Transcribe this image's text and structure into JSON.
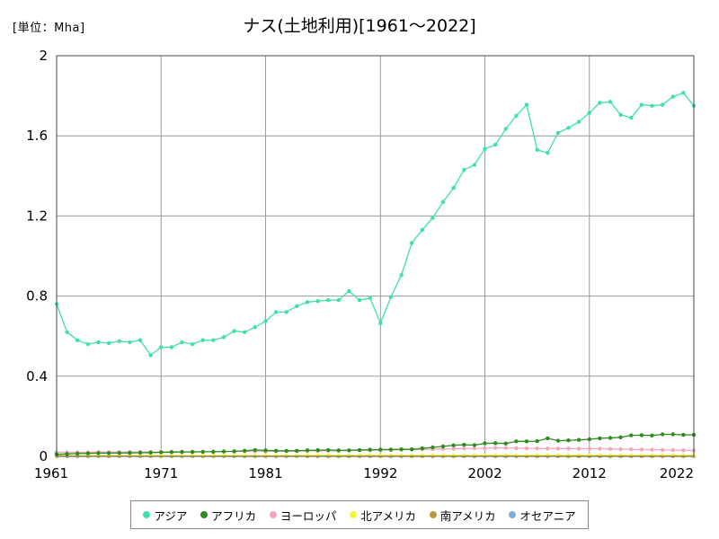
{
  "header": {
    "unit": "[単位：Mha]",
    "title": "ナス(土地利用)[1961～2022]"
  },
  "chart_data": {
    "type": "line",
    "title": "ナス(土地利用)[1961～2022]",
    "unit": "[単位：Mha]",
    "xlim": [
      1961,
      2022
    ],
    "ylim": [
      0,
      2
    ],
    "x_ticks": [
      1961,
      1971,
      1981,
      1992,
      2002,
      2012,
      2022
    ],
    "y_ticks": [
      0,
      0.4,
      0.8,
      1.2,
      1.6,
      2
    ],
    "y_tick_labels": [
      "0",
      "0.4",
      "0.8",
      "1.2",
      "1.6",
      "2"
    ],
    "grid": true,
    "legend_position": "bottom",
    "x": [
      1961,
      1962,
      1963,
      1964,
      1965,
      1966,
      1967,
      1968,
      1969,
      1970,
      1971,
      1972,
      1973,
      1974,
      1975,
      1976,
      1977,
      1978,
      1979,
      1980,
      1981,
      1982,
      1983,
      1984,
      1985,
      1986,
      1987,
      1988,
      1989,
      1990,
      1991,
      1992,
      1993,
      1994,
      1995,
      1996,
      1997,
      1998,
      1999,
      2000,
      2001,
      2002,
      2003,
      2004,
      2005,
      2006,
      2007,
      2008,
      2009,
      2010,
      2011,
      2012,
      2013,
      2014,
      2015,
      2016,
      2017,
      2018,
      2019,
      2020,
      2021,
      2022
    ],
    "series": [
      {
        "name": "アジア",
        "color": "#3ee0b0",
        "values": [
          0.76,
          0.62,
          0.58,
          0.56,
          0.57,
          0.565,
          0.575,
          0.57,
          0.58,
          0.505,
          0.545,
          0.545,
          0.57,
          0.56,
          0.58,
          0.58,
          0.595,
          0.625,
          0.62,
          0.645,
          0.675,
          0.72,
          0.72,
          0.75,
          0.77,
          0.775,
          0.78,
          0.78,
          0.825,
          0.78,
          0.79,
          0.665,
          0.795,
          0.905,
          1.065,
          1.13,
          1.19,
          1.27,
          1.34,
          1.43,
          1.455,
          1.535,
          1.555,
          1.635,
          1.7,
          1.755,
          1.53,
          1.515,
          1.615,
          1.64,
          1.67,
          1.715,
          1.765,
          1.77,
          1.705,
          1.69,
          1.755,
          1.75,
          1.755,
          1.795,
          1.815,
          1.75
        ]
      },
      {
        "name": "アフリカ",
        "color": "#2e8b1e",
        "values": [
          0.01,
          0.012,
          0.014,
          0.015,
          0.016,
          0.016,
          0.017,
          0.017,
          0.018,
          0.019,
          0.02,
          0.021,
          0.022,
          0.022,
          0.023,
          0.023,
          0.024,
          0.025,
          0.028,
          0.032,
          0.03,
          0.028,
          0.028,
          0.028,
          0.03,
          0.031,
          0.032,
          0.03,
          0.03,
          0.032,
          0.033,
          0.034,
          0.034,
          0.035,
          0.035,
          0.04,
          0.045,
          0.05,
          0.055,
          0.058,
          0.056,
          0.065,
          0.066,
          0.064,
          0.075,
          0.075,
          0.076,
          0.09,
          0.078,
          0.08,
          0.082,
          0.085,
          0.09,
          0.092,
          0.095,
          0.105,
          0.106,
          0.104,
          0.11,
          0.11,
          0.107,
          0.107
        ]
      },
      {
        "name": "ヨーロッパ",
        "color": "#f0a8c0",
        "values": [
          0.02,
          0.02,
          0.02,
          0.02,
          0.021,
          0.021,
          0.021,
          0.022,
          0.022,
          0.022,
          0.022,
          0.023,
          0.023,
          0.023,
          0.023,
          0.024,
          0.024,
          0.024,
          0.025,
          0.025,
          0.025,
          0.026,
          0.026,
          0.026,
          0.027,
          0.027,
          0.028,
          0.028,
          0.029,
          0.03,
          0.03,
          0.031,
          0.032,
          0.033,
          0.034,
          0.035,
          0.036,
          0.037,
          0.038,
          0.039,
          0.04,
          0.041,
          0.042,
          0.042,
          0.041,
          0.04,
          0.04,
          0.039,
          0.039,
          0.039,
          0.038,
          0.038,
          0.038,
          0.037,
          0.036,
          0.035,
          0.034,
          0.033,
          0.032,
          0.031,
          0.03,
          0.029
        ]
      },
      {
        "name": "北アメリカ",
        "color": "#f4f43a",
        "values": [
          0.004,
          0.004,
          0.004,
          0.004,
          0.004,
          0.004,
          0.004,
          0.004,
          0.004,
          0.004,
          0.004,
          0.004,
          0.004,
          0.004,
          0.004,
          0.004,
          0.004,
          0.004,
          0.004,
          0.004,
          0.004,
          0.004,
          0.004,
          0.004,
          0.005,
          0.005,
          0.005,
          0.005,
          0.005,
          0.005,
          0.005,
          0.005,
          0.005,
          0.005,
          0.005,
          0.005,
          0.005,
          0.005,
          0.005,
          0.005,
          0.005,
          0.005,
          0.005,
          0.005,
          0.005,
          0.005,
          0.005,
          0.005,
          0.005,
          0.005,
          0.005,
          0.005,
          0.005,
          0.005,
          0.005,
          0.005,
          0.005,
          0.005,
          0.005,
          0.005,
          0.005,
          0.005
        ]
      },
      {
        "name": "南アメリカ",
        "color": "#b89a3a",
        "values": [
          0.002,
          0.002,
          0.002,
          0.002,
          0.002,
          0.002,
          0.002,
          0.002,
          0.002,
          0.002,
          0.002,
          0.002,
          0.002,
          0.002,
          0.002,
          0.002,
          0.002,
          0.002,
          0.002,
          0.002,
          0.002,
          0.002,
          0.002,
          0.002,
          0.002,
          0.002,
          0.002,
          0.002,
          0.002,
          0.002,
          0.002,
          0.002,
          0.002,
          0.002,
          0.002,
          0.002,
          0.002,
          0.002,
          0.002,
          0.002,
          0.002,
          0.002,
          0.002,
          0.002,
          0.002,
          0.002,
          0.002,
          0.002,
          0.002,
          0.002,
          0.002,
          0.002,
          0.002,
          0.002,
          0.002,
          0.002,
          0.002,
          0.002,
          0.002,
          0.002,
          0.002,
          0.002
        ]
      },
      {
        "name": "オセアニア",
        "color": "#80a8d8",
        "values": [
          0.001,
          0.001,
          0.001,
          0.001,
          0.001,
          0.001,
          0.001,
          0.001,
          0.001,
          0.001,
          0.001,
          0.001,
          0.001,
          0.001,
          0.001,
          0.001,
          0.001,
          0.001,
          0.001,
          0.001,
          0.001,
          0.001,
          0.001,
          0.001,
          0.001,
          0.001,
          0.001,
          0.001,
          0.001,
          0.001,
          0.001,
          0.001,
          0.001,
          0.001,
          0.001,
          0.001,
          0.001,
          0.001,
          0.001,
          0.001,
          0.001,
          0.001,
          0.001,
          0.001,
          0.001,
          0.001,
          0.001,
          0.001,
          0.001,
          0.001,
          0.001,
          0.001,
          0.001,
          0.001,
          0.001,
          0.001,
          0.001,
          0.001,
          0.001,
          0.001,
          0.001,
          0.001
        ]
      }
    ]
  }
}
